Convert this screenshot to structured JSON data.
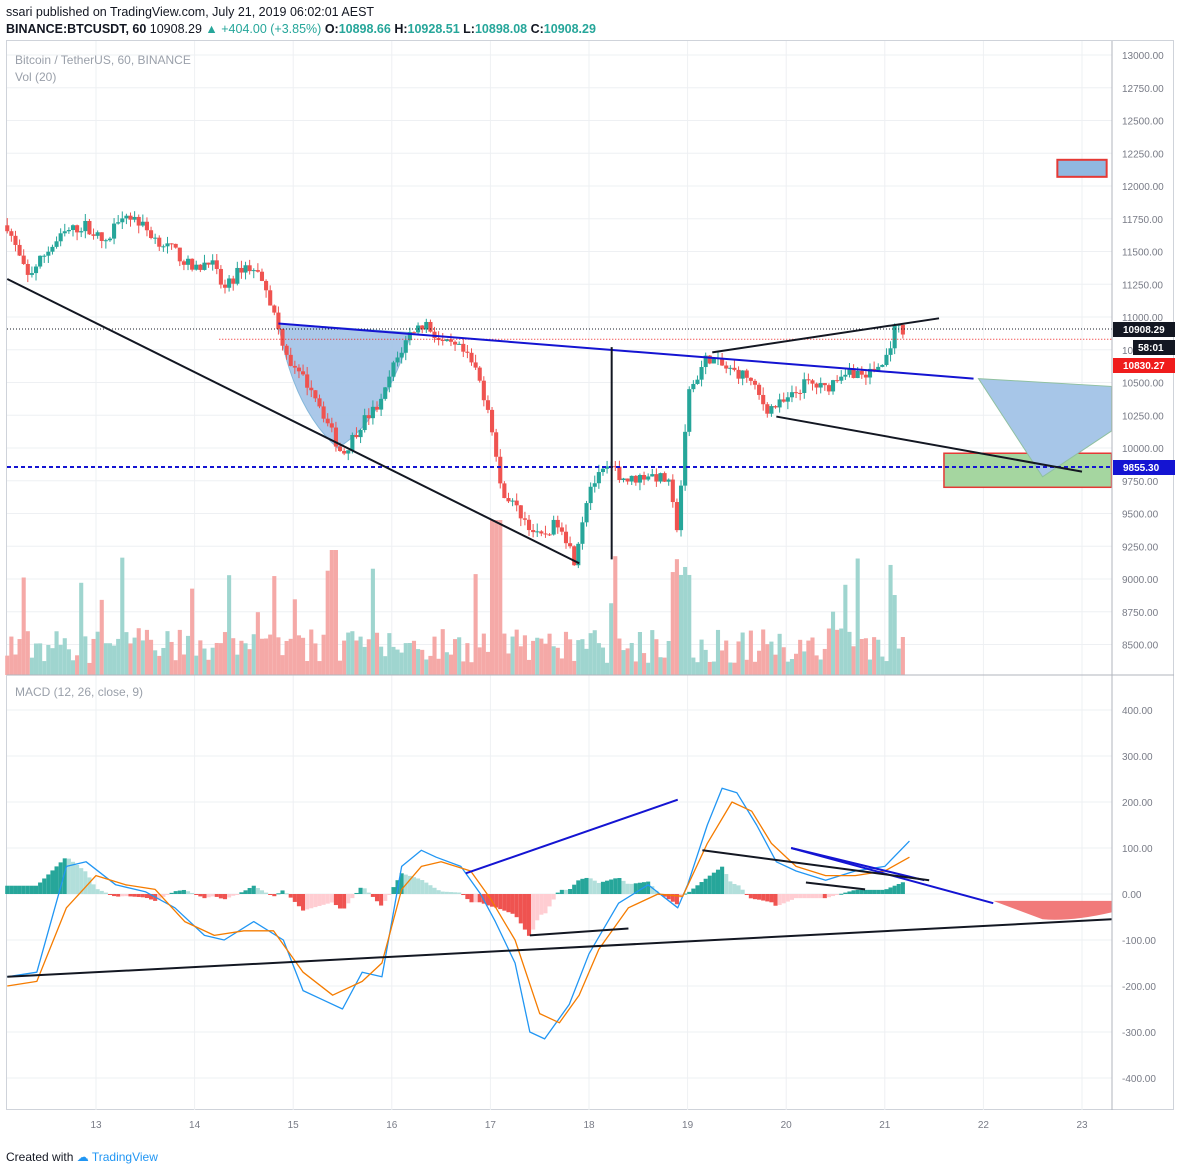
{
  "header": {
    "publisher_line": "ssari published on TradingView.com, July 21, 2019 06:02:01 AEST",
    "symbol": "BINANCE:BTCUSDT, 60",
    "last": "10908.29",
    "change": "▲ +404.00 (+3.85%)",
    "o_label": "O:",
    "o": "10898.66",
    "h_label": "H:",
    "h": "10928.51",
    "l_label": "L:",
    "l": "10898.08",
    "c_label": "C:",
    "c": "10908.29"
  },
  "legend": {
    "pair": "Bitcoin / TetherUS, 60, BINANCE",
    "volume": "Vol (20)",
    "macd": "MACD (12, 26, close, 9)"
  },
  "price_tags": {
    "last": "10908.29",
    "countdown": "58:01",
    "red_level": "10830.27",
    "blue_level": "9855.30"
  },
  "footer": {
    "created_with": "Created with",
    "brand": "TradingView"
  },
  "colors": {
    "up": "#26a69a",
    "down": "#ef5350",
    "blue_line": "#1414d2",
    "ma_blue": "#2196f3",
    "signal": "#f57c00"
  },
  "chart_data": [
    {
      "type": "candlestick",
      "title": "Bitcoin / TetherUS, 60, BINANCE",
      "xlabel": "",
      "ylabel": "",
      "x_ticks": [
        "13",
        "14",
        "15",
        "16",
        "17",
        "18",
        "19",
        "20",
        "21",
        "22",
        "23"
      ],
      "y_ticks": [
        "13000.00",
        "12750.00",
        "12500.00",
        "12250.00",
        "12000.00",
        "11750.00",
        "11500.00",
        "11250.00",
        "11000.00",
        "10750.00",
        "10500.00",
        "10250.00",
        "10000.00",
        "9750.00",
        "9500.00",
        "9250.00",
        "9000.00",
        "8750.00",
        "8500.00"
      ],
      "ylim": [
        8350,
        13050
      ],
      "xlim": [
        12.1,
        23.3
      ],
      "close_path": [
        [
          12.1,
          11700
        ],
        [
          12.3,
          11300
        ],
        [
          12.5,
          11500
        ],
        [
          12.7,
          11650
        ],
        [
          12.9,
          11700
        ],
        [
          13.1,
          11550
        ],
        [
          13.25,
          11800
        ],
        [
          13.4,
          11750
        ],
        [
          13.6,
          11600
        ],
        [
          13.8,
          11500
        ],
        [
          14.0,
          11350
        ],
        [
          14.15,
          11450
        ],
        [
          14.3,
          11200
        ],
        [
          14.5,
          11400
        ],
        [
          14.7,
          11300
        ],
        [
          14.85,
          10900
        ],
        [
          15.0,
          10600
        ],
        [
          15.2,
          10450
        ],
        [
          15.4,
          10100
        ],
        [
          15.5,
          9950
        ],
        [
          15.7,
          10200
        ],
        [
          15.9,
          10350
        ],
        [
          16.0,
          10600
        ],
        [
          16.2,
          10900
        ],
        [
          16.35,
          10950
        ],
        [
          16.5,
          10800
        ],
        [
          16.7,
          10750
        ],
        [
          16.85,
          10600
        ],
        [
          17.0,
          10250
        ],
        [
          17.1,
          9700
        ],
        [
          17.3,
          9500
        ],
        [
          17.5,
          9300
        ],
        [
          17.7,
          9450
        ],
        [
          17.85,
          9150
        ],
        [
          18.0,
          9700
        ],
        [
          18.2,
          9850
        ],
        [
          18.4,
          9750
        ],
        [
          18.6,
          9800
        ],
        [
          18.8,
          9750
        ],
        [
          18.9,
          9350
        ],
        [
          19.0,
          10400
        ],
        [
          19.2,
          10700
        ],
        [
          19.4,
          10600
        ],
        [
          19.6,
          10550
        ],
        [
          19.8,
          10300
        ],
        [
          20.0,
          10350
        ],
        [
          20.2,
          10500
        ],
        [
          20.4,
          10450
        ],
        [
          20.6,
          10600
        ],
        [
          20.8,
          10550
        ],
        [
          21.0,
          10650
        ],
        [
          21.1,
          10908
        ]
      ],
      "annotations": {
        "horizontal_lines": [
          10908.29,
          10830.27,
          9855.3
        ],
        "blue_neckline": [
          [
            14.85,
            10950
          ],
          [
            21.9,
            10530
          ]
        ],
        "black_downtrend": [
          [
            12.1,
            11290
          ],
          [
            17.9,
            9120
          ]
        ],
        "black_upper_wedge": [
          [
            19.25,
            10730
          ],
          [
            21.55,
            10990
          ]
        ],
        "black_lower_wedge": [
          [
            19.9,
            10240
          ],
          [
            23.0,
            9820
          ]
        ],
        "measured_move_vertical": [
          18.23,
          10770,
          9150
        ],
        "target_box_blue": [
          [
            22.75,
            12200
          ],
          [
            23.25,
            12070
          ]
        ],
        "target_box_green": [
          [
            21.6,
            9960
          ],
          [
            23.3,
            9700
          ]
        ]
      }
    },
    {
      "type": "bar",
      "title": "Vol (20)",
      "note": "volume histogram, relative heights"
    },
    {
      "type": "line",
      "title": "MACD (12, 26, close, 9)",
      "y_ticks": [
        "400.00",
        "300.00",
        "200.00",
        "100.00",
        "0.00",
        "-100.00",
        "-200.00",
        "-300.00",
        "-400.00"
      ],
      "ylim": [
        -450,
        450
      ],
      "series": [
        {
          "name": "MACD",
          "values": [
            [
              12.1,
              -180
            ],
            [
              12.4,
              -170
            ],
            [
              12.7,
              60
            ],
            [
              12.9,
              70
            ],
            [
              13.2,
              20
            ],
            [
              13.5,
              5
            ],
            [
              13.8,
              -30
            ],
            [
              14.1,
              -90
            ],
            [
              14.3,
              -100
            ],
            [
              14.6,
              -60
            ],
            [
              14.9,
              -100
            ],
            [
              15.1,
              -210
            ],
            [
              15.3,
              -230
            ],
            [
              15.5,
              -250
            ],
            [
              15.7,
              -170
            ],
            [
              15.9,
              -180
            ],
            [
              16.1,
              60
            ],
            [
              16.3,
              95
            ],
            [
              16.45,
              80
            ],
            [
              16.7,
              60
            ],
            [
              16.9,
              0
            ],
            [
              17.05,
              -60
            ],
            [
              17.25,
              -150
            ],
            [
              17.4,
              -300
            ],
            [
              17.55,
              -315
            ],
            [
              17.8,
              -240
            ],
            [
              18.0,
              -130
            ],
            [
              18.3,
              -20
            ],
            [
              18.6,
              20
            ],
            [
              18.9,
              -30
            ],
            [
              19.0,
              20
            ],
            [
              19.2,
              150
            ],
            [
              19.35,
              230
            ],
            [
              19.5,
              220
            ],
            [
              19.7,
              150
            ],
            [
              19.9,
              70
            ],
            [
              20.1,
              50
            ],
            [
              20.4,
              30
            ],
            [
              20.7,
              50
            ],
            [
              21.0,
              60
            ],
            [
              21.25,
              115
            ]
          ]
        },
        {
          "name": "Signal",
          "values": [
            [
              12.1,
              -200
            ],
            [
              12.4,
              -190
            ],
            [
              12.7,
              -30
            ],
            [
              13.0,
              40
            ],
            [
              13.3,
              20
            ],
            [
              13.6,
              10
            ],
            [
              13.9,
              -60
            ],
            [
              14.2,
              -90
            ],
            [
              14.5,
              -80
            ],
            [
              14.8,
              -80
            ],
            [
              15.1,
              -170
            ],
            [
              15.4,
              -220
            ],
            [
              15.7,
              -190
            ],
            [
              15.9,
              -150
            ],
            [
              16.1,
              10
            ],
            [
              16.3,
              60
            ],
            [
              16.5,
              70
            ],
            [
              16.8,
              50
            ],
            [
              17.0,
              -10
            ],
            [
              17.25,
              -100
            ],
            [
              17.5,
              -260
            ],
            [
              17.7,
              -280
            ],
            [
              17.9,
              -220
            ],
            [
              18.1,
              -120
            ],
            [
              18.4,
              -30
            ],
            [
              18.7,
              0
            ],
            [
              18.95,
              -5
            ],
            [
              19.2,
              110
            ],
            [
              19.45,
              200
            ],
            [
              19.65,
              180
            ],
            [
              19.85,
              110
            ],
            [
              20.1,
              60
            ],
            [
              20.4,
              40
            ],
            [
              20.7,
              40
            ],
            [
              21.0,
              50
            ],
            [
              21.25,
              80
            ]
          ]
        }
      ],
      "histogram_zero": 0,
      "trendlines": {
        "blue_upper": [
          [
            16.75,
            45
          ],
          [
            18.9,
            205
          ]
        ],
        "blue_short": [
          [
            20.05,
            100
          ],
          [
            21.4,
            30
          ]
        ],
        "blue_long": [
          [
            20.05,
            100
          ],
          [
            22.1,
            -20
          ]
        ],
        "black_long": [
          [
            12.1,
            -180
          ],
          [
            23.3,
            -55
          ]
        ],
        "black_mid": [
          [
            17.4,
            -90
          ],
          [
            18.4,
            -75
          ]
        ],
        "black_hist_top": [
          [
            19.15,
            95
          ],
          [
            21.45,
            30
          ]
        ],
        "black_small": [
          [
            20.2,
            25
          ],
          [
            20.8,
            10
          ]
        ]
      }
    }
  ]
}
